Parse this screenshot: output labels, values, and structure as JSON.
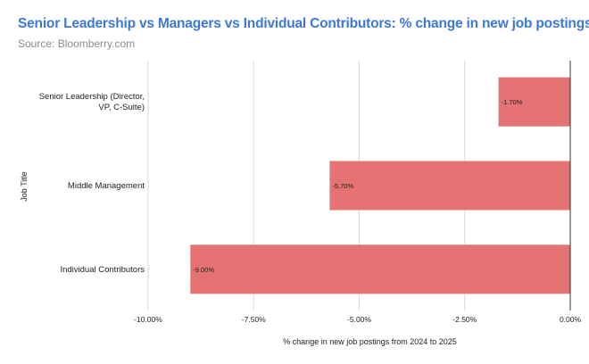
{
  "chart_data": {
    "type": "bar",
    "orientation": "horizontal",
    "title": "Senior Leadership vs Managers vs Individual Contributors: % change in new job postings",
    "subtitle": "Source: Bloomberry.com",
    "xlabel": "% change in new job postings from 2024 to 2025",
    "ylabel": "Job Title",
    "categories": [
      "Senior Leadership (Director, VP, C-Suite)",
      "Middle Management",
      "Individual Contributors"
    ],
    "category_lines": [
      [
        "Senior Leadership (Director,",
        "VP, C-Suite)"
      ],
      [
        "Middle Management"
      ],
      [
        "Individual Contributors"
      ]
    ],
    "values": [
      -1.7,
      -5.7,
      -9.0
    ],
    "data_labels": [
      "-1.70%",
      "-5.70%",
      "-9.00%"
    ],
    "xlim": [
      -10,
      0
    ],
    "xticks": [
      -10,
      -7.5,
      -5,
      -2.5,
      0
    ],
    "xtick_labels": [
      "-10.00%",
      "-7.50%",
      "-5.00%",
      "-2.50%",
      "0.00%"
    ],
    "grid": true,
    "bar_color": "#e57373",
    "title_color": "#3c78d8"
  }
}
